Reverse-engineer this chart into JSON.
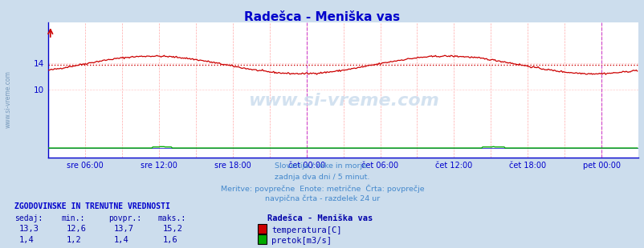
{
  "title": "Radešca - Meniška vas",
  "title_color": "#0000cc",
  "bg_color": "#ccdded",
  "plot_bg_color": "#ffffff",
  "fig_width": 8.03,
  "fig_height": 3.1,
  "ylim": [
    0,
    20
  ],
  "yticks": [
    10,
    14
  ],
  "xlim": [
    0,
    576
  ],
  "temp_avg": 13.7,
  "flow_avg": 1.4,
  "temp_min": 12.6,
  "temp_max": 15.2,
  "flow_min": 1.2,
  "flow_max": 1.6,
  "temp_current": 13.3,
  "flow_current": 1.4,
  "x_tick_positions": [
    36,
    108,
    180,
    252,
    324,
    396,
    468,
    540
  ],
  "x_tick_labels": [
    "sre 06:00",
    "sre 12:00",
    "sre 18:00",
    "čet 00:00",
    "čet 06:00",
    "čet 12:00",
    "čet 18:00",
    "pet 00:00"
  ],
  "vline_positions": [
    252,
    540
  ],
  "temp_color": "#cc0000",
  "flow_color": "#00aa00",
  "avg_line_color": "#cc0000",
  "grid_color": "#ffaaaa",
  "grid_h_color": "#ffcccc",
  "vline_color": "#cc44cc",
  "axis_color": "#0000cc",
  "watermark": "www.si-vreme.com",
  "text_lines": [
    "Slovenija / reke in morje.",
    "zadnja dva dni / 5 minut.",
    "Meritve: povrpečne  Enote: metrične  Črta: povrpečje",
    "navpična črta - razdelek 24 ur"
  ],
  "text_lines_correct": [
    "Slovenija / reke in morje.",
    "zadnja dva dni / 5 minut.",
    "Meritve: povprečne  Enote: metrične  Črta: povprečje",
    "navpična črta - razdelek 24 ur"
  ],
  "footer_title": "ZGODOVINSKE IN TRENUTNE VREDNOSTI",
  "col_headers": [
    "sedaj:",
    "min.:",
    "povpr.:",
    "maks.:"
  ],
  "row1": [
    "13,3",
    "12,6",
    "13,7",
    "15,2"
  ],
  "row2": [
    "1,4",
    "1,2",
    "1,4",
    "1,6"
  ],
  "legend_title": "Radešca - Meniška vas",
  "legend_label1": "temperatura[C]",
  "legend_label2": "pretok[m3/s]",
  "legend_color1": "#cc0000",
  "legend_color2": "#00aa00",
  "sidebar_text": "www.si-vreme.com",
  "sidebar_color": "#7799bb"
}
